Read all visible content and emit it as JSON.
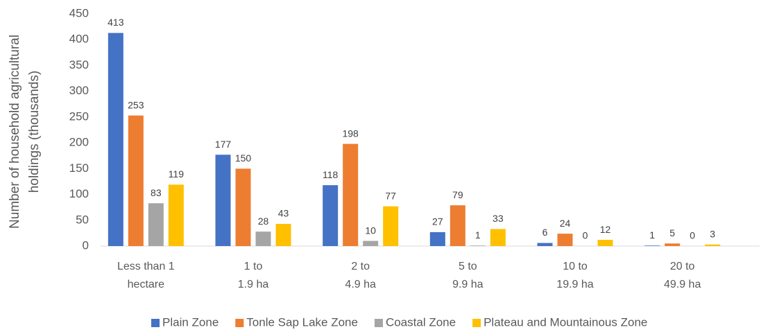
{
  "chart_data": {
    "type": "bar",
    "ylabel": [
      "Number of household agricultural",
      "holdings (thousands)"
    ],
    "categories": [
      [
        "Less than 1",
        "hectare"
      ],
      [
        "1 to",
        "1.9 ha"
      ],
      [
        "2 to",
        "4.9 ha"
      ],
      [
        "5 to",
        "9.9 ha"
      ],
      [
        "10 to",
        "19.9 ha"
      ],
      [
        "20 to",
        "49.9 ha"
      ]
    ],
    "series": [
      {
        "name": "Plain Zone",
        "color": "#4472c4",
        "values": [
          413,
          177,
          118,
          27,
          6,
          1
        ]
      },
      {
        "name": "Tonle Sap Lake Zone",
        "color": "#ed7d31",
        "values": [
          253,
          150,
          198,
          79,
          24,
          5
        ]
      },
      {
        "name": "Coastal Zone",
        "color": "#a5a5a5",
        "values": [
          83,
          28,
          10,
          1,
          0,
          0
        ]
      },
      {
        "name": "Plateau and Mountainous Zone",
        "color": "#ffc000",
        "values": [
          119,
          43,
          77,
          33,
          12,
          3
        ]
      }
    ],
    "ylim": [
      0,
      450
    ],
    "yticks": [
      0,
      50,
      100,
      150,
      200,
      250,
      300,
      350,
      400,
      450
    ],
    "grid": false,
    "legend": "bottom"
  }
}
